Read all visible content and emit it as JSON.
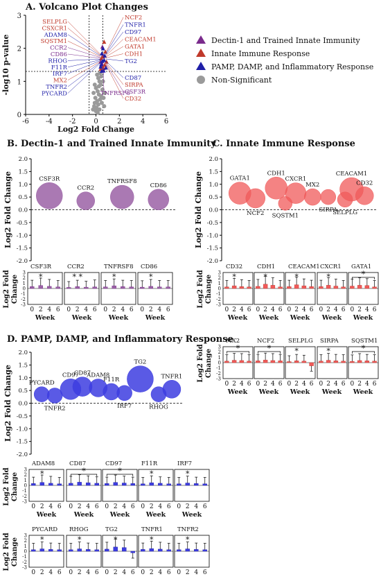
{
  "colors": {
    "dectin": "#7a2b8c",
    "innate": "#c0392b",
    "pamp": "#1f1fa8",
    "nonsig": "#9a9a9a",
    "purple_fill": "#9b62a6",
    "red_fill": "#f05a5a",
    "blue_fill": "#3d3de0"
  },
  "chart_data": [
    {
      "id": "A",
      "type": "scatter",
      "title": "A. Volcano Plot Changes",
      "xlabel": "Log2 Fold Change",
      "ylabel": "-log10 p-value",
      "xlim": [
        -6,
        6
      ],
      "ylim": [
        0,
        3
      ],
      "xticks": [
        "-6",
        "-4",
        "-2",
        "0",
        "2",
        "4",
        "6"
      ],
      "yticks": [
        "0",
        "1",
        "2",
        "3"
      ],
      "thresholds": {
        "x": [
          -0.58,
          0.58
        ],
        "y": 1.3
      },
      "legend": [
        {
          "label": "Dectin-1 and Trained Innate Immunity",
          "marker": "triangle",
          "color": "#7a2b8c"
        },
        {
          "label": "Innate Immune Response",
          "marker": "triangle",
          "color": "#c0392b"
        },
        {
          "label": "PAMP, DAMP, and Inflammatory Response",
          "marker": "triangle",
          "color": "#1f1fa8"
        },
        {
          "label": "Non-Significant",
          "marker": "circle",
          "color": "#9a9a9a"
        }
      ],
      "labels_left": [
        {
          "text": "SELPLG",
          "group": "innate"
        },
        {
          "text": "CSXCR1",
          "group": "innate"
        },
        {
          "text": "ADAM8",
          "group": "pamp"
        },
        {
          "text": "SQSTM1",
          "group": "innate"
        },
        {
          "text": "CCR2",
          "group": "dectin"
        },
        {
          "text": "CD86",
          "group": "dectin"
        },
        {
          "text": "RHOG",
          "group": "pamp"
        },
        {
          "text": "F11R",
          "group": "pamp"
        },
        {
          "text": "IRF7",
          "group": "pamp"
        },
        {
          "text": "MX2",
          "group": "innate"
        },
        {
          "text": "TNFR2",
          "group": "pamp"
        },
        {
          "text": "PYCARD",
          "group": "pamp"
        }
      ],
      "labels_right": [
        {
          "text": "NCF2",
          "group": "innate"
        },
        {
          "text": "TNFR1",
          "group": "pamp"
        },
        {
          "text": "CD97",
          "group": "pamp"
        },
        {
          "text": "CEACAM1",
          "group": "innate"
        },
        {
          "text": "GATA1",
          "group": "innate"
        },
        {
          "text": "CDH1",
          "group": "innate"
        },
        {
          "text": "TG2",
          "group": "pamp"
        }
      ],
      "labels_right_low": [
        {
          "text": "CD87",
          "group": "pamp"
        },
        {
          "text": "SIRPA",
          "group": "innate"
        },
        {
          "text": "CSF3R",
          "group": "dectin"
        },
        {
          "text": "CD32",
          "group": "innate"
        }
      ],
      "label_bottom": {
        "text": "TNFRSF8",
        "group": "dectin"
      },
      "sig_points": [
        {
          "x": 0.55,
          "y": 2.05,
          "g": "dectin"
        },
        {
          "x": 0.6,
          "y": 1.8,
          "g": "dectin"
        },
        {
          "x": 0.4,
          "y": 1.6,
          "g": "dectin"
        },
        {
          "x": 0.5,
          "y": 1.55,
          "g": "dectin"
        },
        {
          "x": 0.7,
          "y": 2.2,
          "g": "innate"
        },
        {
          "x": 0.8,
          "y": 1.9,
          "g": "innate"
        },
        {
          "x": 0.6,
          "y": 1.75,
          "g": "innate"
        },
        {
          "x": 0.45,
          "y": 1.7,
          "g": "innate"
        },
        {
          "x": 0.9,
          "y": 1.6,
          "g": "innate"
        },
        {
          "x": 0.5,
          "y": 1.45,
          "g": "innate"
        },
        {
          "x": 0.65,
          "y": 1.4,
          "g": "innate"
        },
        {
          "x": 0.55,
          "y": 1.35,
          "g": "innate"
        },
        {
          "x": 0.75,
          "y": 1.5,
          "g": "innate"
        },
        {
          "x": 0.4,
          "y": 1.38,
          "g": "innate"
        },
        {
          "x": 0.6,
          "y": 2.0,
          "g": "pamp"
        },
        {
          "x": 0.5,
          "y": 1.85,
          "g": "pamp"
        },
        {
          "x": 0.7,
          "y": 1.65,
          "g": "pamp"
        },
        {
          "x": 0.45,
          "y": 1.52,
          "g": "pamp"
        },
        {
          "x": 0.85,
          "y": 1.42,
          "g": "pamp"
        },
        {
          "x": 0.55,
          "y": 1.62,
          "g": "pamp"
        },
        {
          "x": 0.65,
          "y": 1.33,
          "g": "pamp"
        },
        {
          "x": 0.4,
          "y": 1.45,
          "g": "pamp"
        },
        {
          "x": 0.75,
          "y": 1.78,
          "g": "pamp"
        },
        {
          "x": 0.5,
          "y": 1.32,
          "g": "pamp"
        }
      ],
      "nonsig_points": [
        {
          "x": 0.1,
          "y": 1.2
        },
        {
          "x": 0.2,
          "y": 1.1
        },
        {
          "x": 0.3,
          "y": 1.0
        },
        {
          "x": -0.1,
          "y": 0.9
        },
        {
          "x": 0.0,
          "y": 0.8
        },
        {
          "x": 0.15,
          "y": 0.7
        },
        {
          "x": 0.25,
          "y": 0.6
        },
        {
          "x": -0.05,
          "y": 0.5
        },
        {
          "x": 0.35,
          "y": 0.45
        },
        {
          "x": 0.1,
          "y": 0.4
        },
        {
          "x": 0.2,
          "y": 0.3
        },
        {
          "x": -0.15,
          "y": 0.25
        },
        {
          "x": 0.05,
          "y": 0.2
        },
        {
          "x": 0.3,
          "y": 0.15
        },
        {
          "x": 0.0,
          "y": 0.1
        },
        {
          "x": 0.4,
          "y": 0.9
        },
        {
          "x": -0.2,
          "y": 0.65
        },
        {
          "x": 0.45,
          "y": 0.55
        },
        {
          "x": 0.5,
          "y": 0.35
        },
        {
          "x": -0.1,
          "y": 0.35
        },
        {
          "x": 0.55,
          "y": 0.75
        },
        {
          "x": 0.6,
          "y": 1.0
        },
        {
          "x": 0.65,
          "y": 0.5
        },
        {
          "x": 0.7,
          "y": 0.25
        },
        {
          "x": 0.75,
          "y": 0.65
        },
        {
          "x": 0.35,
          "y": 1.25
        },
        {
          "x": 0.45,
          "y": 1.15
        },
        {
          "x": 0.25,
          "y": 0.85
        },
        {
          "x": 0.15,
          "y": 0.05
        },
        {
          "x": -0.25,
          "y": 0.15
        }
      ]
    },
    {
      "id": "B",
      "type": "scatter",
      "title": "B. Dectin-1 and Trained Innate Immunity",
      "ylabel": "Log2 Fold Change",
      "ylim": [
        -2.0,
        2.0
      ],
      "yticks": [
        "2.0",
        "1.5",
        "1.0",
        "0.5",
        "0.0",
        "-0.5",
        "-1.0",
        "-1.5",
        "-2.0"
      ],
      "bubbles": [
        {
          "label": "CSF3R",
          "x": 0.5,
          "y": 0.55,
          "r": 19,
          "lab": "above"
        },
        {
          "label": "CCR2",
          "x": 1.5,
          "y": 0.35,
          "r": 13,
          "lab": "above"
        },
        {
          "label": "TNFRSF8",
          "x": 2.5,
          "y": 0.5,
          "r": 17,
          "lab": "above"
        },
        {
          "label": "CD86",
          "x": 3.5,
          "y": 0.4,
          "r": 15,
          "lab": "above"
        }
      ]
    },
    {
      "id": "C",
      "type": "scatter",
      "title": "C. Innate Immune Response",
      "ylabel": "Log2 Fold Change",
      "ylim": [
        -2.0,
        2.0
      ],
      "yticks": [
        "2.0",
        "1.5",
        "1.0",
        "0.5",
        "0.0",
        "-0.5",
        "-1.0",
        "-1.5",
        "-2.0"
      ],
      "bubbles": [
        {
          "label": "GATA1",
          "x": 0.7,
          "y": 0.65,
          "r": 16,
          "lab": "above"
        },
        {
          "label": "NCF2",
          "x": 1.3,
          "y": 0.45,
          "r": 14,
          "lab": "below"
        },
        {
          "label": "CDH1",
          "x": 2.1,
          "y": 0.85,
          "r": 16,
          "lab": "above"
        },
        {
          "label": "SQSTM1",
          "x": 2.45,
          "y": 0.25,
          "r": 10,
          "lab": "below"
        },
        {
          "label": "CXCR1",
          "x": 2.85,
          "y": 0.65,
          "r": 15,
          "lab": "above"
        },
        {
          "label": "MX2",
          "x": 3.5,
          "y": 0.5,
          "r": 12,
          "lab": "above"
        },
        {
          "label": "SIRPA",
          "x": 4.1,
          "y": 0.5,
          "r": 11,
          "lab": "below"
        },
        {
          "label": "SELPLG",
          "x": 4.75,
          "y": 0.4,
          "r": 11,
          "lab": "below"
        },
        {
          "label": "CEACAM1",
          "x": 5.0,
          "y": 0.8,
          "r": 17,
          "lab": "above"
        },
        {
          "label": "CD32",
          "x": 5.5,
          "y": 0.55,
          "r": 13,
          "lab": "above"
        }
      ]
    },
    {
      "id": "D",
      "type": "scatter",
      "title": "D. PAMP, DAMP, and Inflammatory Response",
      "ylabel": "Log2 Fold Change",
      "ylim": [
        -2.0,
        2.0
      ],
      "yticks": [
        "2.0",
        "1.5",
        "1.0",
        "0.5",
        "0.0",
        "-0.5",
        "-1.0",
        "-1.5",
        "-2.0"
      ],
      "bubbles": [
        {
          "label": "PYCARD",
          "x": 0.4,
          "y": 0.35,
          "r": 11,
          "lab": "above"
        },
        {
          "label": "TNFR2",
          "x": 0.9,
          "y": 0.3,
          "r": 11,
          "lab": "below"
        },
        {
          "label": "CD97",
          "x": 1.5,
          "y": 0.55,
          "r": 15,
          "lab": "above"
        },
        {
          "label": "CD87",
          "x": 1.95,
          "y": 0.65,
          "r": 14,
          "lab": "above"
        },
        {
          "label": "ADAM8",
          "x": 2.55,
          "y": 0.6,
          "r": 13,
          "lab": "above"
        },
        {
          "label": "F11R",
          "x": 3.05,
          "y": 0.45,
          "r": 12,
          "lab": "above"
        },
        {
          "label": "IRF7",
          "x": 3.55,
          "y": 0.4,
          "r": 11,
          "lab": "below"
        },
        {
          "label": "TG2",
          "x": 4.15,
          "y": 0.95,
          "r": 19,
          "lab": "above"
        },
        {
          "label": "RHOG",
          "x": 4.85,
          "y": 0.35,
          "r": 11,
          "lab": "below"
        },
        {
          "label": "TNFR1",
          "x": 5.35,
          "y": 0.55,
          "r": 13,
          "lab": "above"
        }
      ]
    },
    {
      "id": "bars",
      "type": "bar",
      "xlabel": "Week",
      "ylabel": "Log2 Fold Change",
      "ylim": [
        -3,
        3
      ],
      "yticks": [
        "3",
        "2",
        "1",
        "0",
        "-1",
        "-2",
        "-3"
      ],
      "xticks": [
        "0",
        "2",
        "4",
        "6"
      ],
      "panels": [
        {
          "label": "CSF3R",
          "group": "dectin",
          "values": [
            0.35,
            0.55,
            0.4,
            0.3
          ],
          "err": [
            1.2,
            1.4,
            1.3,
            1.2
          ],
          "star": "*",
          "bracket": false
        },
        {
          "label": "CCR2",
          "group": "dectin",
          "values": [
            0.2,
            0.35,
            0.25,
            0.3
          ],
          "err": [
            1.1,
            1.2,
            1.1,
            1.3
          ],
          "star": "* *",
          "bracket": false
        },
        {
          "label": "TNFRSF8",
          "group": "dectin",
          "values": [
            0.3,
            0.5,
            0.35,
            0.3
          ],
          "err": [
            1.2,
            1.3,
            1.2,
            1.2
          ],
          "star": "*",
          "bracket": false
        },
        {
          "label": "CD86",
          "group": "dectin",
          "values": [
            0.25,
            0.4,
            0.3,
            0.3
          ],
          "err": [
            1.2,
            1.3,
            1.2,
            1.2
          ],
          "star": "*",
          "bracket": false
        },
        {
          "label": "CD32",
          "group": "innate",
          "values": [
            0.3,
            0.5,
            0.35,
            0.3
          ],
          "err": [
            1.2,
            1.4,
            1.3,
            1.2
          ],
          "star": "*",
          "bracket": false
        },
        {
          "label": "CDH1",
          "group": "innate",
          "values": [
            0.4,
            0.8,
            0.6,
            0.3
          ],
          "err": [
            1.3,
            1.5,
            1.4,
            1.2
          ],
          "star": "*",
          "bracket": false
        },
        {
          "label": "CEACAM1",
          "group": "innate",
          "values": [
            0.35,
            0.7,
            0.5,
            0.35
          ],
          "err": [
            1.2,
            1.4,
            1.3,
            1.2
          ],
          "star": "*",
          "bracket": false
        },
        {
          "label": "CXCR1",
          "group": "innate",
          "values": [
            0.35,
            0.6,
            0.45,
            0.3
          ],
          "err": [
            1.2,
            1.4,
            1.3,
            1.2
          ],
          "star": "*",
          "bracket": false
        },
        {
          "label": "GATA1",
          "group": "innate",
          "values": [
            0.45,
            0.6,
            0.55,
            0.3
          ],
          "err": [
            1.3,
            1.4,
            1.3,
            1.2
          ],
          "star": "*",
          "bracket": true
        },
        {
          "label": "MX2",
          "group": "innate",
          "values": [
            0.3,
            0.45,
            0.4,
            0.3
          ],
          "err": [
            1.2,
            1.3,
            1.3,
            1.2
          ],
          "star": "*",
          "bracket": true
        },
        {
          "label": "NCF2",
          "group": "innate",
          "values": [
            0.35,
            0.5,
            0.4,
            0.35
          ],
          "err": [
            1.2,
            1.3,
            1.3,
            1.2
          ],
          "star": "*",
          "bracket": true
        },
        {
          "label": "SELPLG",
          "group": "innate",
          "values": [
            0.2,
            0.35,
            0.3,
            -0.6
          ],
          "err": [
            1.1,
            1.2,
            1.1,
            1.0
          ],
          "star": "*",
          "bracket": false
        },
        {
          "label": "SIRPA",
          "group": "innate",
          "values": [
            0.3,
            0.45,
            0.35,
            0.3
          ],
          "err": [
            1.2,
            1.3,
            1.2,
            1.2
          ],
          "star": "*",
          "bracket": false
        },
        {
          "label": "SQSTM1",
          "group": "innate",
          "values": [
            0.25,
            0.4,
            0.35,
            0.3
          ],
          "err": [
            1.2,
            1.3,
            1.2,
            1.2
          ],
          "star": "*",
          "bracket": true
        },
        {
          "label": "ADAM8",
          "group": "pamp",
          "values": [
            0.35,
            0.55,
            0.4,
            0.3
          ],
          "err": [
            1.2,
            1.4,
            1.3,
            1.2
          ],
          "star": "*",
          "bracket": false
        },
        {
          "label": "CD87",
          "group": "pamp",
          "values": [
            0.4,
            0.6,
            0.5,
            0.4
          ],
          "err": [
            1.3,
            1.4,
            1.3,
            1.2
          ],
          "star": "*",
          "bracket": true
        },
        {
          "label": "CD97",
          "group": "pamp",
          "values": [
            0.35,
            0.55,
            0.45,
            0.35
          ],
          "err": [
            1.2,
            1.4,
            1.3,
            1.2
          ],
          "star": "*",
          "bracket": true
        },
        {
          "label": "F11R",
          "group": "pamp",
          "values": [
            0.3,
            0.5,
            0.4,
            0.3
          ],
          "err": [
            1.2,
            1.3,
            1.2,
            1.2
          ],
          "star": "*",
          "bracket": false
        },
        {
          "label": "IRF7",
          "group": "pamp",
          "values": [
            0.3,
            0.45,
            0.35,
            0.3
          ],
          "err": [
            1.2,
            1.3,
            1.2,
            1.2
          ],
          "star": "*",
          "bracket": false
        },
        {
          "label": "PYCARD",
          "group": "pamp",
          "values": [
            0.3,
            0.45,
            0.35,
            0.3
          ],
          "err": [
            1.2,
            1.3,
            1.2,
            1.2
          ],
          "star": "*",
          "bracket": false
        },
        {
          "label": "RHOG",
          "group": "pamp",
          "values": [
            0.3,
            0.45,
            0.35,
            0.3
          ],
          "err": [
            1.2,
            1.3,
            1.2,
            1.2
          ],
          "star": "*",
          "bracket": false
        },
        {
          "label": "TG2",
          "group": "pamp",
          "values": [
            0.4,
            0.8,
            0.7,
            -0.3
          ],
          "err": [
            1.3,
            1.5,
            1.4,
            1.0
          ],
          "star": "*",
          "bracket": false
        },
        {
          "label": "TNFR1",
          "group": "pamp",
          "values": [
            0.35,
            0.5,
            0.4,
            0.3
          ],
          "err": [
            1.2,
            1.4,
            1.3,
            1.2
          ],
          "star": "*",
          "bracket": false
        },
        {
          "label": "TNFR2",
          "group": "pamp",
          "values": [
            0.3,
            0.45,
            0.35,
            0.3
          ],
          "err": [
            1.2,
            1.3,
            1.2,
            1.2
          ],
          "star": "*",
          "bracket": false
        }
      ]
    }
  ]
}
